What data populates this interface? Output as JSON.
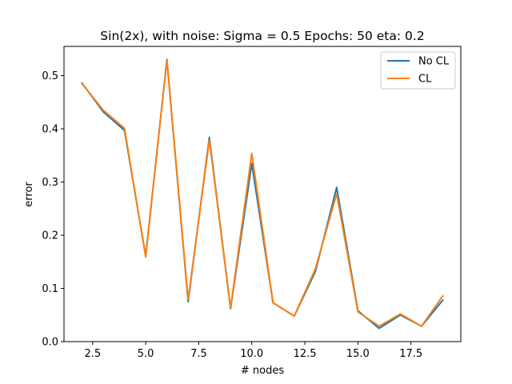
{
  "chart_data": {
    "type": "line",
    "title": "Sin(2x), with noise: Sigma = 0.5 Epochs: 50 eta: 0.2",
    "xlabel": "# nodes",
    "ylabel": "error",
    "xlim": [
      1.15,
      19.85
    ],
    "ylim": [
      0.0,
      0.555
    ],
    "xticks": [
      2.5,
      5.0,
      7.5,
      10.0,
      12.5,
      15.0,
      17.5
    ],
    "xtick_labels": [
      "2.5",
      "5.0",
      "7.5",
      "10.0",
      "12.5",
      "15.0",
      "17.5"
    ],
    "yticks": [
      0.0,
      0.1,
      0.2,
      0.3,
      0.4,
      0.5
    ],
    "ytick_labels": [
      "0.0",
      "0.1",
      "0.2",
      "0.3",
      "0.4",
      "0.5"
    ],
    "grid": false,
    "legend_position": "top-right",
    "x": [
      2,
      3,
      4,
      5,
      6,
      7,
      8,
      9,
      10,
      11,
      12,
      13,
      14,
      15,
      16,
      17,
      18,
      19
    ],
    "series": [
      {
        "name": "No CL",
        "color": "#1f77b4",
        "values": [
          0.486,
          0.432,
          0.397,
          0.161,
          0.53,
          0.075,
          0.384,
          0.062,
          0.335,
          0.073,
          0.048,
          0.132,
          0.29,
          0.058,
          0.025,
          0.05,
          0.029,
          0.078
        ]
      },
      {
        "name": "CL",
        "color": "#ff7f0e",
        "values": [
          0.485,
          0.435,
          0.401,
          0.159,
          0.531,
          0.079,
          0.379,
          0.063,
          0.354,
          0.073,
          0.048,
          0.137,
          0.278,
          0.056,
          0.029,
          0.052,
          0.029,
          0.086
        ]
      }
    ]
  }
}
